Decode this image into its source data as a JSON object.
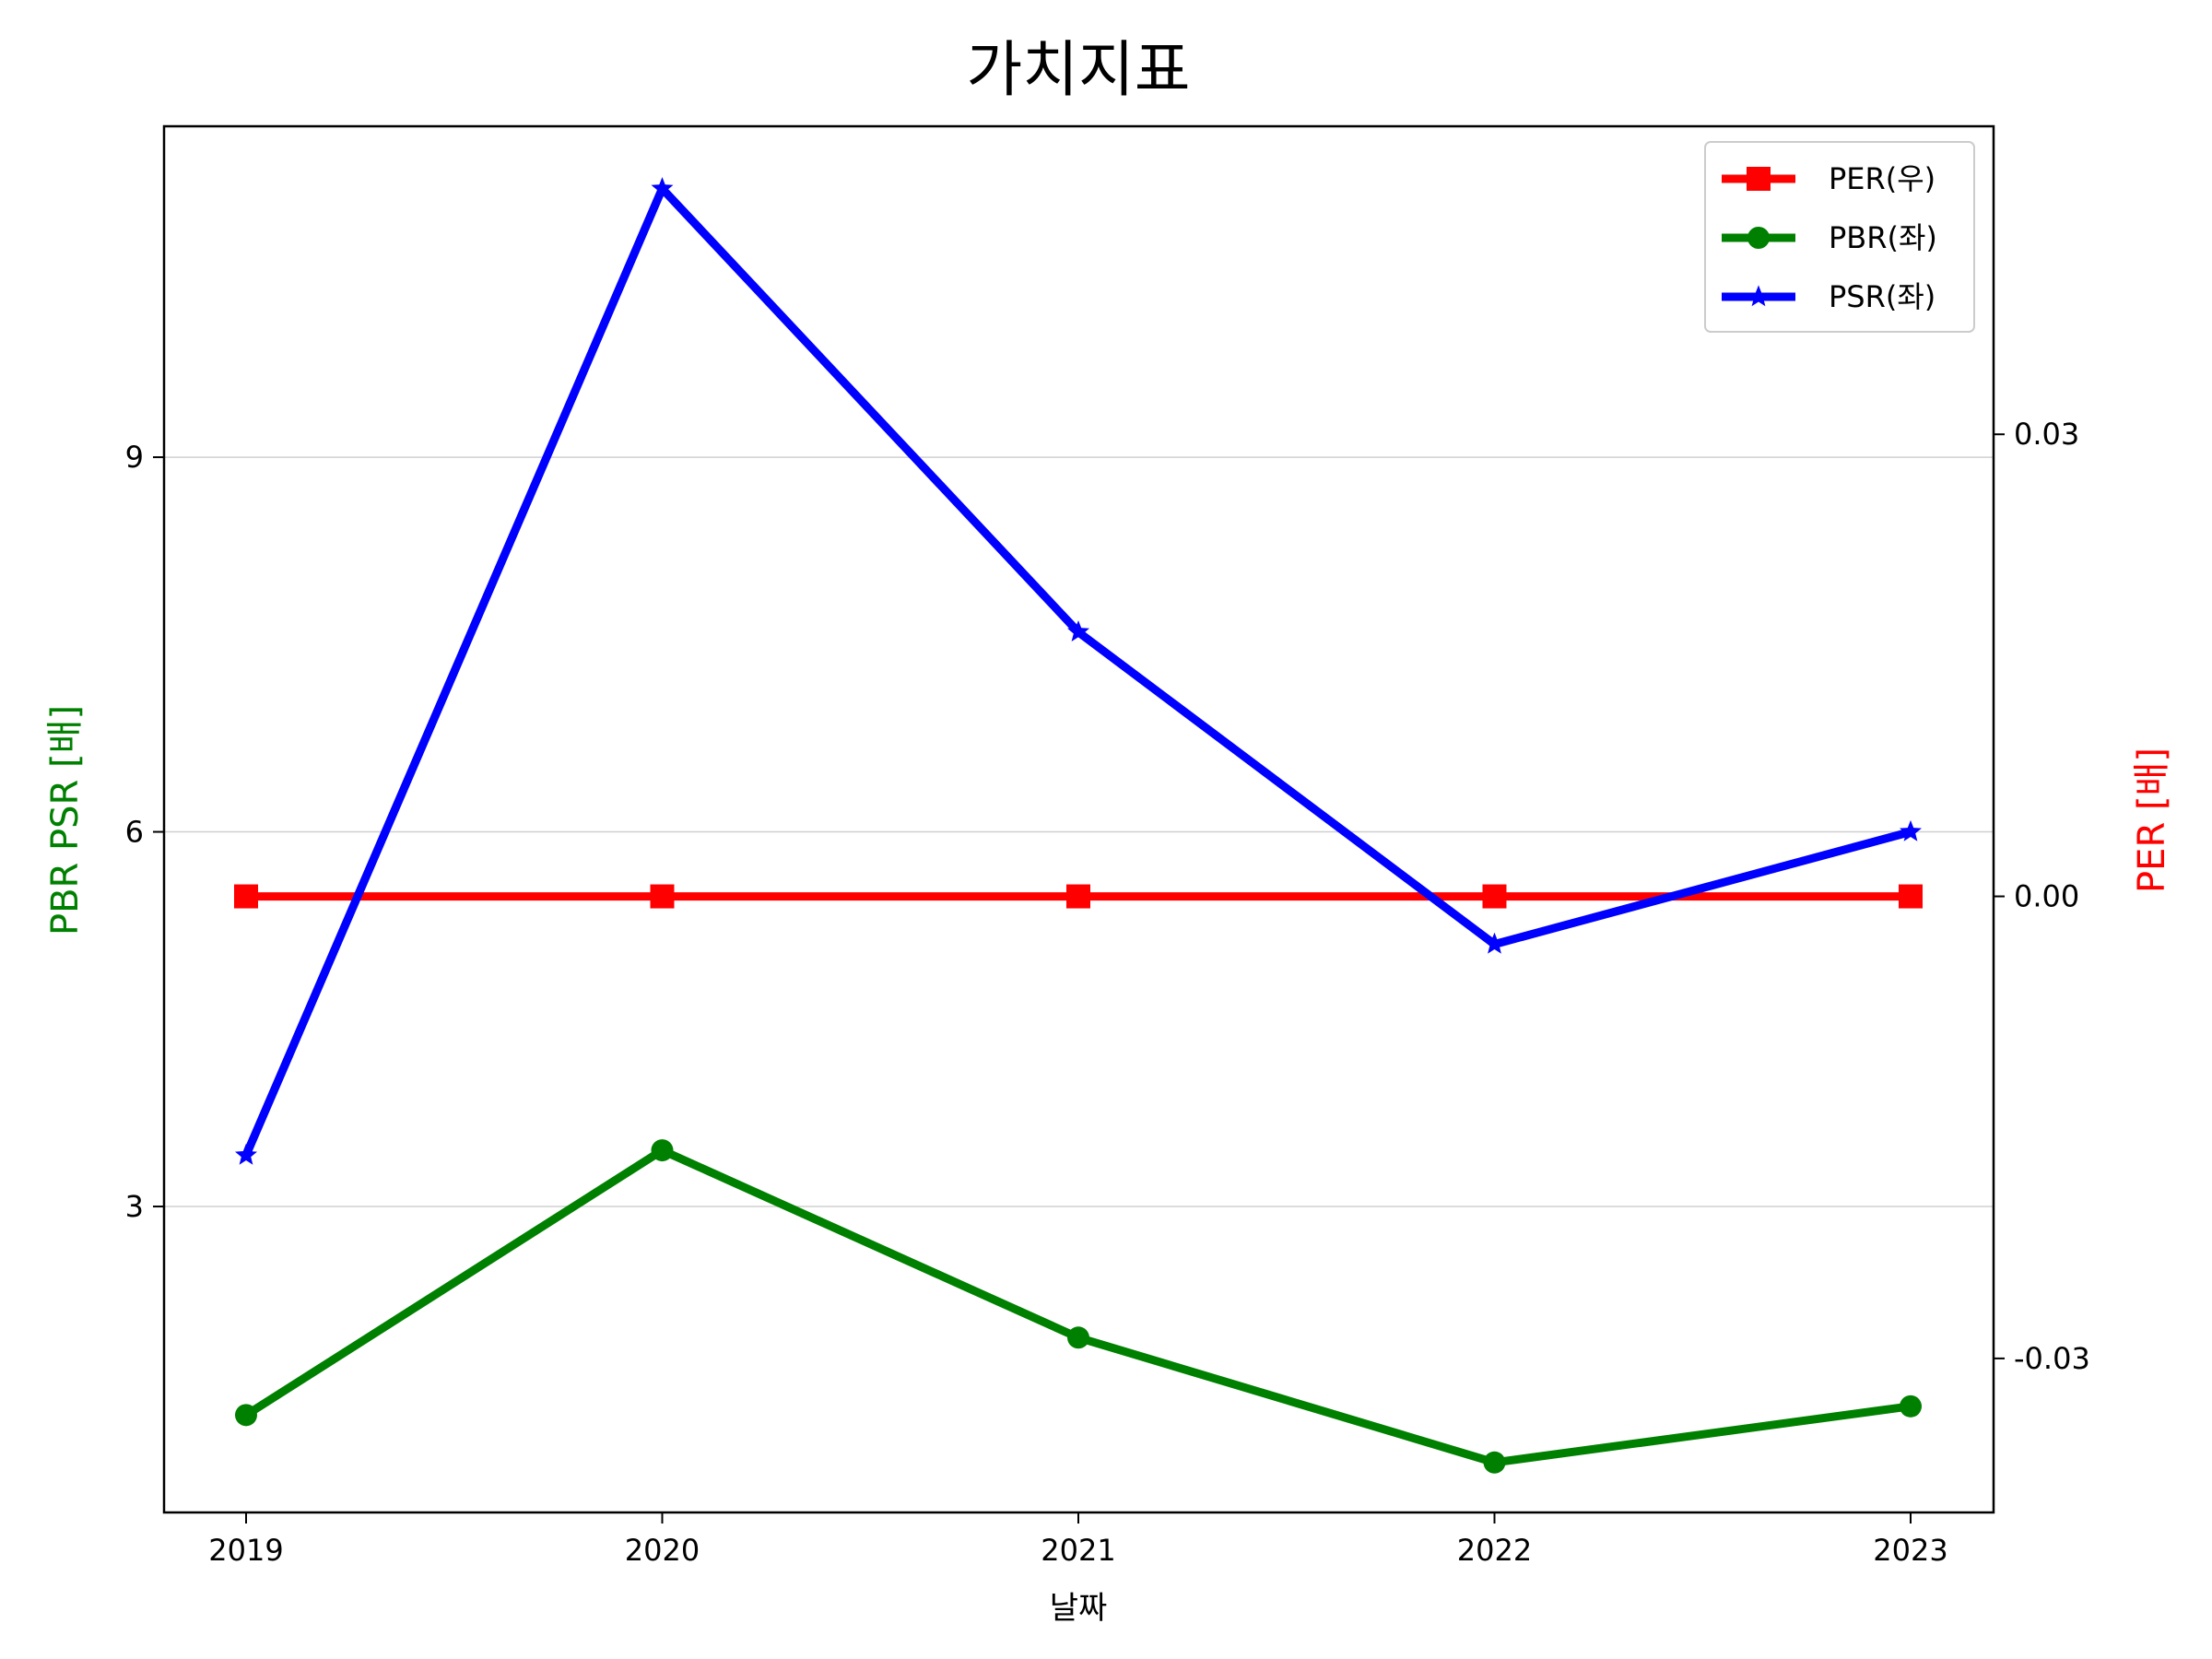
{
  "chart_data": {
    "type": "line",
    "title": "가치지표",
    "xlabel": "날짜",
    "ylabel_left": "PBR PSR [배]",
    "ylabel_right": "PER [배]",
    "x": [
      "2019",
      "2020",
      "2021",
      "2022",
      "2023"
    ],
    "left_axis": {
      "ylim": [
        0.55,
        11.65
      ],
      "ticks": [
        3,
        6,
        9
      ],
      "tick_labels": [
        "3",
        "6",
        "9"
      ],
      "grid": true
    },
    "right_axis": {
      "ylim": [
        -0.04,
        0.05
      ],
      "ticks": [
        -0.03,
        0.0,
        0.03
      ],
      "tick_labels": [
        "-0.03",
        "0.00",
        "0.03"
      ]
    },
    "legend_position": "upper right",
    "series": [
      {
        "name": "PER(우)",
        "axis": "right",
        "color": "#ff0000",
        "marker": "square",
        "values": [
          0.0,
          0.0,
          0.0,
          0.0,
          0.0
        ]
      },
      {
        "name": "PBR(좌)",
        "axis": "left",
        "color": "#008000",
        "marker": "circle",
        "values": [
          1.33,
          3.45,
          1.95,
          0.95,
          1.4
        ]
      },
      {
        "name": "PSR(좌)",
        "axis": "left",
        "color": "#0000ff",
        "marker": "star",
        "values": [
          3.41,
          11.15,
          7.6,
          5.1,
          6.0
        ]
      }
    ]
  }
}
